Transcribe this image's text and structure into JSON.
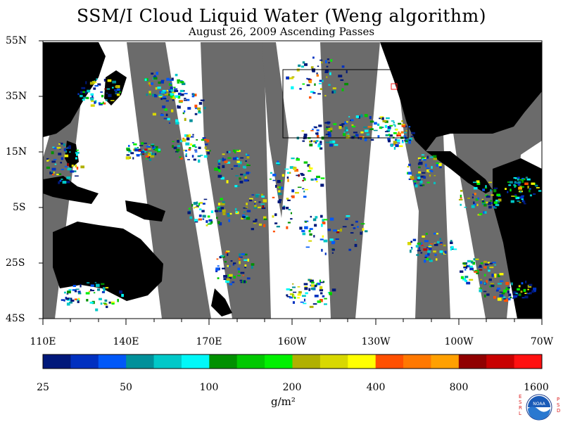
{
  "header": {
    "title": "SSM/I Cloud Liquid Water (Weng algorithm)",
    "subtitle": "August 26, 2009  Ascending Passes"
  },
  "map": {
    "lat_labels": [
      "55N",
      "35N",
      "15N",
      "5S",
      "25S",
      "45S"
    ],
    "lon_labels": [
      "110E",
      "140E",
      "170E",
      "160W",
      "130W",
      "100W",
      "70W"
    ],
    "colors": {
      "land": "#000000",
      "no_data_swath_gap": "#6b6b6b",
      "ocean_clear": "#ffffff",
      "box_outline": "#000000",
      "red_marker": "#ff2020"
    }
  },
  "colorbar": {
    "colors": [
      "#00187a",
      "#0030c0",
      "#0058f8",
      "#00909a",
      "#00c8c8",
      "#00f8f8",
      "#009000",
      "#00c800",
      "#00f000",
      "#b0b000",
      "#d8d800",
      "#ffff00",
      "#ff5000",
      "#ff7800",
      "#ffa000",
      "#900000",
      "#c80000",
      "#ff1010"
    ],
    "tick_labels": [
      "25",
      "50",
      "100",
      "200",
      "400",
      "800",
      "1600"
    ],
    "units": "g/m²"
  },
  "logo": {
    "left_letters": [
      "E",
      "S",
      "R",
      "L"
    ],
    "right_letters": [
      "P",
      "S",
      "D"
    ],
    "center_text": "NOAA"
  }
}
